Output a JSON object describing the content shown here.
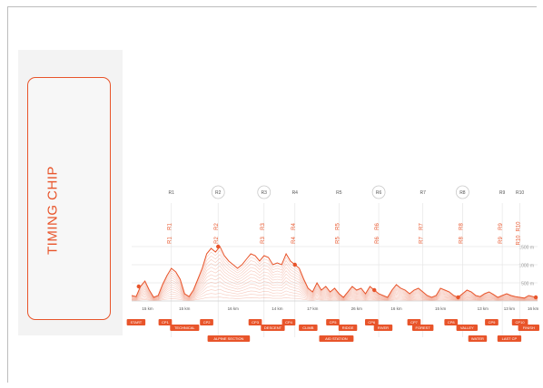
{
  "panel": {
    "title": "TIMING CHIP"
  },
  "chart_data": {
    "type": "area",
    "title": "",
    "xlabel": "",
    "ylabel": "",
    "ylim": [
      0,
      1500
    ],
    "elevation_labels": [
      "1500 m",
      "1000 m",
      "500 m"
    ],
    "elevation_levels": [
      1500,
      1000,
      500
    ],
    "distance_km": [
      0,
      5,
      10,
      15,
      20,
      25,
      30,
      35,
      40,
      45,
      50,
      55,
      60,
      65,
      70,
      75,
      80,
      85,
      90,
      95,
      100,
      105,
      110,
      115,
      120,
      125,
      130,
      135,
      140,
      145,
      150,
      155,
      160,
      165,
      170,
      175,
      180,
      185,
      190,
      195,
      200,
      205,
      210,
      215,
      220,
      225,
      230,
      235,
      240,
      245,
      250,
      255,
      260,
      265,
      270,
      275,
      280,
      285,
      290,
      295,
      300,
      305,
      310,
      315,
      320,
      325,
      330,
      335,
      340,
      345,
      350,
      355,
      360,
      365,
      370,
      375,
      380,
      385,
      390,
      395,
      400,
      405,
      410,
      415,
      420,
      425,
      430,
      435,
      440,
      445,
      450,
      455,
      460
    ],
    "elevation_m": [
      150,
      120,
      400,
      550,
      300,
      100,
      150,
      450,
      700,
      900,
      800,
      600,
      200,
      120,
      300,
      600,
      900,
      1300,
      1450,
      1350,
      1500,
      1250,
      1100,
      1000,
      900,
      1000,
      1150,
      1300,
      1250,
      1100,
      1250,
      1200,
      1000,
      1050,
      1000,
      1300,
      1100,
      1000,
      900,
      600,
      350,
      250,
      500,
      300,
      400,
      250,
      350,
      200,
      100,
      250,
      400,
      300,
      350,
      200,
      400,
      300,
      200,
      150,
      100,
      300,
      450,
      350,
      300,
      200,
      300,
      350,
      250,
      150,
      100,
      150,
      350,
      300,
      250,
      150,
      100,
      200,
      300,
      250,
      150,
      120,
      200,
      250,
      180,
      100,
      150,
      200,
      150,
      120,
      100,
      80,
      150,
      120,
      100
    ],
    "markers_km": [
      8,
      98,
      185,
      275,
      370,
      458
    ],
    "stages": [
      {
        "label": "R1",
        "km": 45,
        "circled": false
      },
      {
        "label": "R2",
        "km": 98,
        "circled": true
      },
      {
        "label": "R3",
        "km": 150,
        "circled": true
      },
      {
        "label": "R4",
        "km": 185,
        "circled": false
      },
      {
        "label": "R5",
        "km": 235,
        "circled": false
      },
      {
        "label": "R6",
        "km": 280,
        "circled": true
      },
      {
        "label": "R7",
        "km": 330,
        "circled": false
      },
      {
        "label": "R8",
        "km": 375,
        "circled": true
      },
      {
        "label": "R9",
        "km": 420,
        "circled": false
      },
      {
        "label": "R10",
        "km": 440,
        "circled": false
      }
    ],
    "segment_labels": [
      {
        "label": "15 km",
        "km": 18
      },
      {
        "label": "15 km",
        "km": 60
      },
      {
        "label": "16 km",
        "km": 115
      },
      {
        "label": "14 km",
        "km": 165
      },
      {
        "label": "17 km",
        "km": 205
      },
      {
        "label": "26 km",
        "km": 255
      },
      {
        "label": "16 km",
        "km": 300
      },
      {
        "label": "15 km",
        "km": 350
      },
      {
        "label": "13 km",
        "km": 398
      },
      {
        "label": "13 km",
        "km": 428
      },
      {
        "label": "16 km",
        "km": 455
      }
    ],
    "tags_row1": [
      {
        "label": "START",
        "km": 5
      },
      {
        "label": "CP1",
        "km": 38
      },
      {
        "label": "CP2",
        "km": 85
      },
      {
        "label": "CP3",
        "km": 140
      },
      {
        "label": "CP4",
        "km": 178
      },
      {
        "label": "CP5",
        "km": 228
      },
      {
        "label": "CP6",
        "km": 272
      },
      {
        "label": "CP7",
        "km": 320
      },
      {
        "label": "CP8",
        "km": 362
      },
      {
        "label": "CP9",
        "km": 408
      },
      {
        "label": "CP10",
        "km": 440
      }
    ],
    "tags_row2": [
      {
        "label": "TECHNICAL",
        "km": 60
      },
      {
        "label": "DESCENT",
        "km": 160
      },
      {
        "label": "CLIMB",
        "km": 200
      },
      {
        "label": "RIDGE",
        "km": 245
      },
      {
        "label": "RIVER",
        "km": 285
      },
      {
        "label": "FOREST",
        "km": 330
      },
      {
        "label": "VALLEY",
        "km": 380
      },
      {
        "label": "FINISH",
        "km": 450
      }
    ],
    "tags_row3": [
      {
        "label": "ALPINE SECTION",
        "km": 110
      },
      {
        "label": "AID STATION",
        "km": 232
      },
      {
        "label": "WATER",
        "km": 392
      },
      {
        "label": "LAST CP",
        "km": 428
      }
    ],
    "colors": {
      "accent": "#e8542a",
      "line": "#f0a08a",
      "grid": "#d9d9d9"
    }
  }
}
